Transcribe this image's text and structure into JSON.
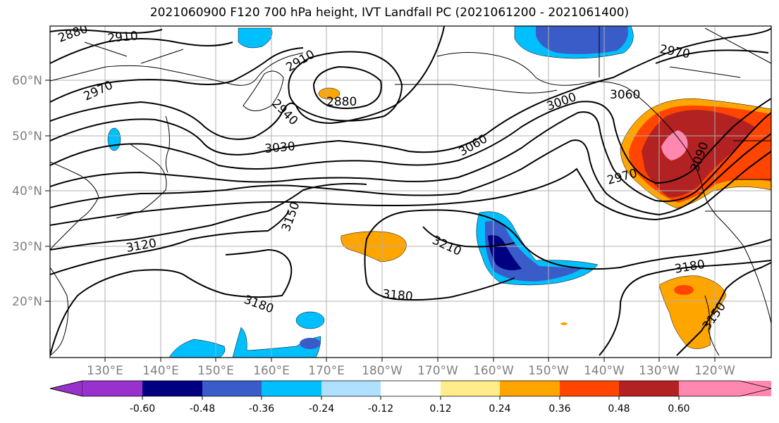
{
  "title": "2021060900 F120 700 hPa height, IVT Landfall PC (2021061200 - 2021061400)",
  "map": {
    "lat_ticks": [
      "20°N",
      "30°N",
      "40°N",
      "50°N",
      "60°N"
    ],
    "lon_ticks": [
      "130°E",
      "140°E",
      "150°E",
      "160°E",
      "170°E",
      "180°W",
      "170°W",
      "160°W",
      "150°W",
      "140°W",
      "130°W",
      "120°W"
    ],
    "contour_labels": [
      "2880",
      "2910",
      "2970",
      "2910",
      "2880",
      "2940",
      "3030",
      "3000",
      "3060",
      "3060",
      "2970",
      "2970",
      "3090",
      "3150",
      "3120",
      "3210",
      "3180",
      "3180",
      "3180",
      "3150"
    ]
  },
  "colorbar": {
    "tick_labels": [
      "-0.60",
      "-0.48",
      "-0.36",
      "-0.24",
      "-0.12",
      "0.12",
      "0.24",
      "0.36",
      "0.48",
      "0.60"
    ],
    "colors": [
      "#9932CC",
      "#000080",
      "#3A5CC8",
      "#00BFFF",
      "#B0E0FF",
      "#FFFFFF",
      "#FFEC8B",
      "#FFA500",
      "#FF4500",
      "#B22222",
      "#FF88B0"
    ]
  }
}
